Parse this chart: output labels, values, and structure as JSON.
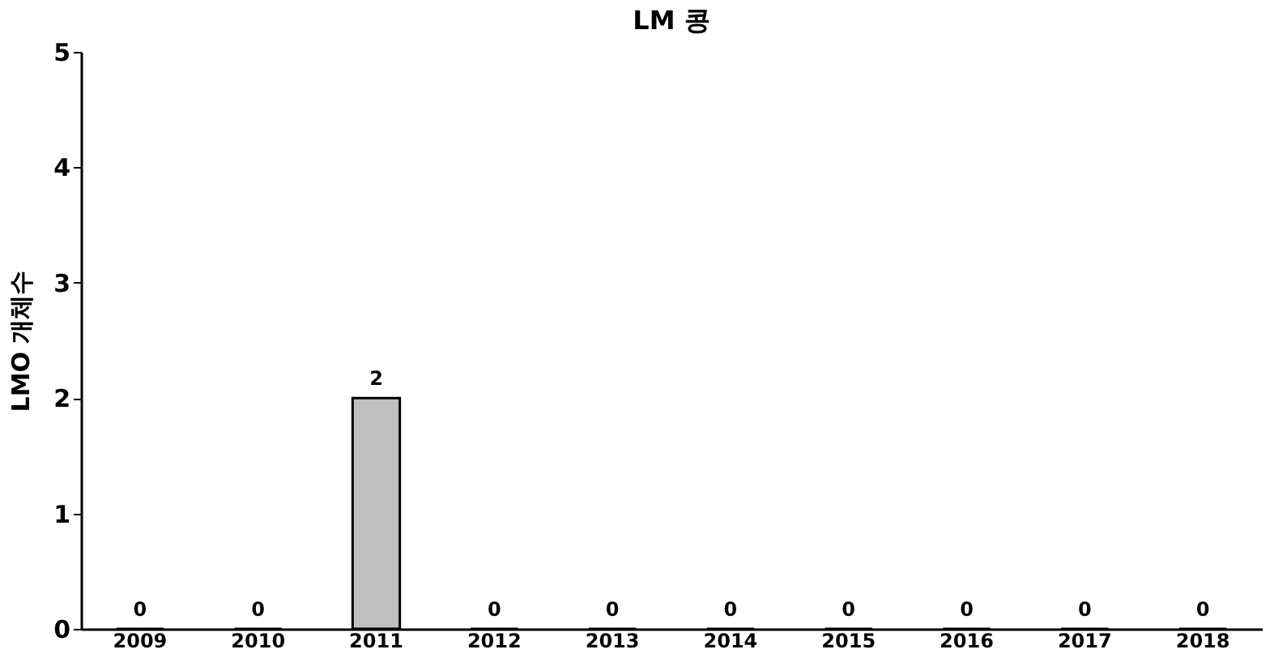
{
  "chart_data": {
    "type": "bar",
    "title": "LM 콩",
    "ylabel": "LMO 개체수",
    "categories": [
      "2009",
      "2010",
      "2011",
      "2012",
      "2013",
      "2014",
      "2015",
      "2016",
      "2017",
      "2018"
    ],
    "values": [
      0,
      0,
      2,
      0,
      0,
      0,
      0,
      0,
      0,
      0
    ],
    "color": "#bfbfbf",
    "ylim": [
      0,
      5
    ],
    "yticks": [
      0,
      1,
      2,
      3,
      4,
      5
    ],
    "grid": false,
    "data_labels": true
  }
}
